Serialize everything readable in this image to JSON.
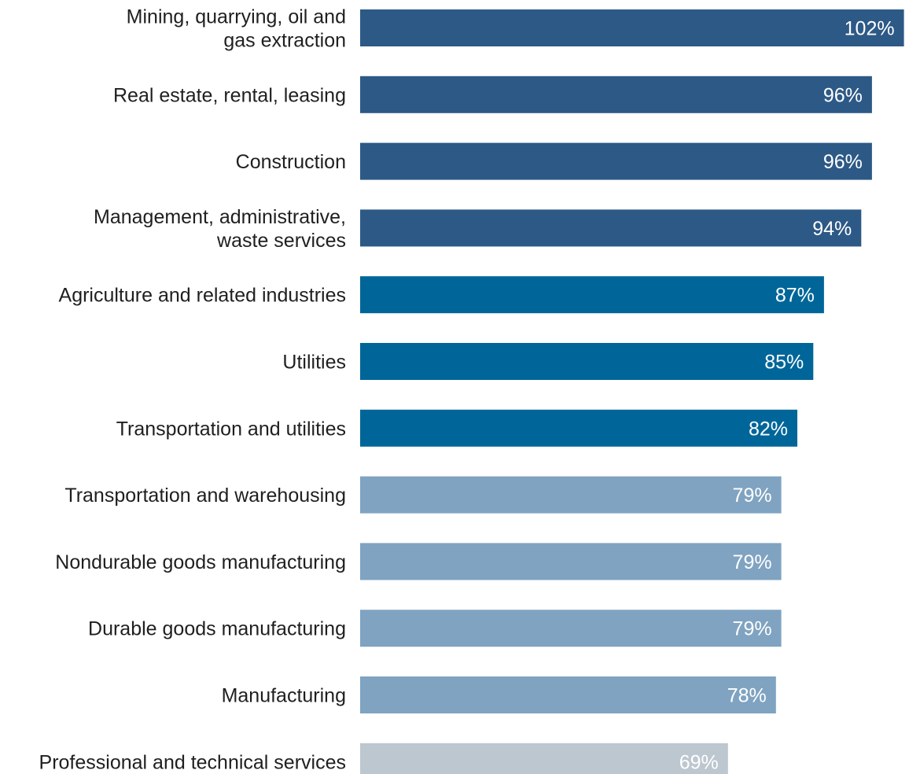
{
  "chart_data": {
    "type": "bar",
    "orientation": "horizontal",
    "title": "",
    "xlabel": "",
    "ylabel": "",
    "grid": false,
    "xlim": [
      0,
      104
    ],
    "value_suffix": "%",
    "categories": [
      "Mining, quarrying, oil and gas extraction",
      "Real estate, rental, leasing",
      "Construction",
      "Management, administrative, waste services",
      "Agriculture and related industries",
      "Utilities",
      "Transportation and utilities",
      "Transportation and warehousing",
      "Nondurable goods manufacturing",
      "Durable goods manufacturing",
      "Manufacturing",
      "Professional and technical services"
    ],
    "category_lines": [
      [
        "Mining, quarrying, oil and",
        "gas extraction"
      ],
      [
        "Real estate, rental, leasing"
      ],
      [
        "Construction"
      ],
      [
        "Management, administrative,",
        "waste services"
      ],
      [
        "Agriculture and related industries"
      ],
      [
        "Utilities"
      ],
      [
        "Transportation and utilities"
      ],
      [
        "Transportation and warehousing"
      ],
      [
        "Nondurable goods manufacturing"
      ],
      [
        "Durable goods manufacturing"
      ],
      [
        "Manufacturing"
      ],
      [
        "Professional and technical services"
      ]
    ],
    "values": [
      102,
      96,
      96,
      94,
      87,
      85,
      82,
      79,
      79,
      79,
      78,
      69
    ],
    "value_labels": [
      "102%",
      "96%",
      "96%",
      "94%",
      "87%",
      "85%",
      "82%",
      "79%",
      "79%",
      "79%",
      "78%",
      "69%"
    ],
    "colors": [
      "#2d5986",
      "#2d5986",
      "#2d5986",
      "#2d5986",
      "#006699",
      "#006699",
      "#006699",
      "#7fa3c1",
      "#7fa3c1",
      "#7fa3c1",
      "#7fa3c1",
      "#bdc7d0"
    ]
  }
}
